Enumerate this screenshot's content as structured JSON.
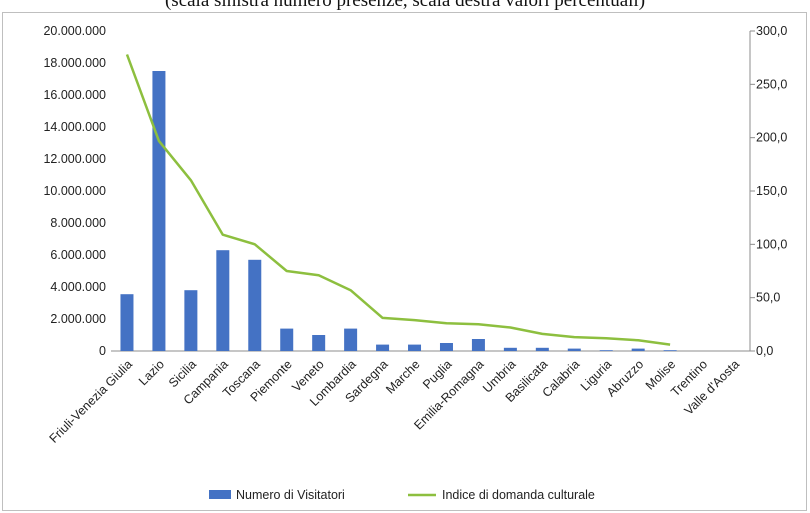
{
  "chart_data": {
    "type": "bar",
    "subtitle": "(scala sinistra numero presenze, scala destra valori percentuali)",
    "categories": [
      "Friuli-Venezia Giulia",
      "Lazio",
      "Sicilia",
      "Campania",
      "Toscana",
      "Piemonte",
      "Veneto",
      "Lombardia",
      "Sardegna",
      "Marche",
      "Puglia",
      "Emilia-Romagna",
      "Umbria",
      "Basilicata",
      "Calabria",
      "Liguria",
      "Abruzzo",
      "Molise",
      "Trentino",
      "Valle d'Aosta"
    ],
    "series": [
      {
        "name": "Numero di Visitatori",
        "type": "bar",
        "axis": "left",
        "color": "#4472c4",
        "values": [
          3550000,
          17500000,
          3800000,
          6300000,
          5700000,
          1400000,
          1000000,
          1400000,
          400000,
          400000,
          500000,
          750000,
          200000,
          200000,
          150000,
          50000,
          150000,
          50000,
          0,
          0
        ]
      },
      {
        "name": "Indice di domanda culturale",
        "type": "line",
        "axis": "right",
        "color": "#8dbf3f",
        "values": [
          278,
          197,
          160,
          109,
          100,
          75,
          71,
          57,
          31,
          29,
          26,
          25,
          22,
          16,
          13,
          12,
          10,
          6,
          null,
          null
        ]
      }
    ],
    "y_left": {
      "min": 0,
      "max": 20000000,
      "step": 2000000,
      "ticks": [
        "0",
        "2.000.000",
        "4.000.000",
        "6.000.000",
        "8.000.000",
        "10.000.000",
        "12.000.000",
        "14.000.000",
        "16.000.000",
        "18.000.000",
        "20.000.000"
      ]
    },
    "y_right": {
      "min": 0,
      "max": 300,
      "step": 50,
      "ticks": [
        "0,0",
        "50,0",
        "100,0",
        "150,0",
        "200,0",
        "250,0",
        "300,0"
      ]
    },
    "grid": false,
    "legend_position": "bottom"
  }
}
